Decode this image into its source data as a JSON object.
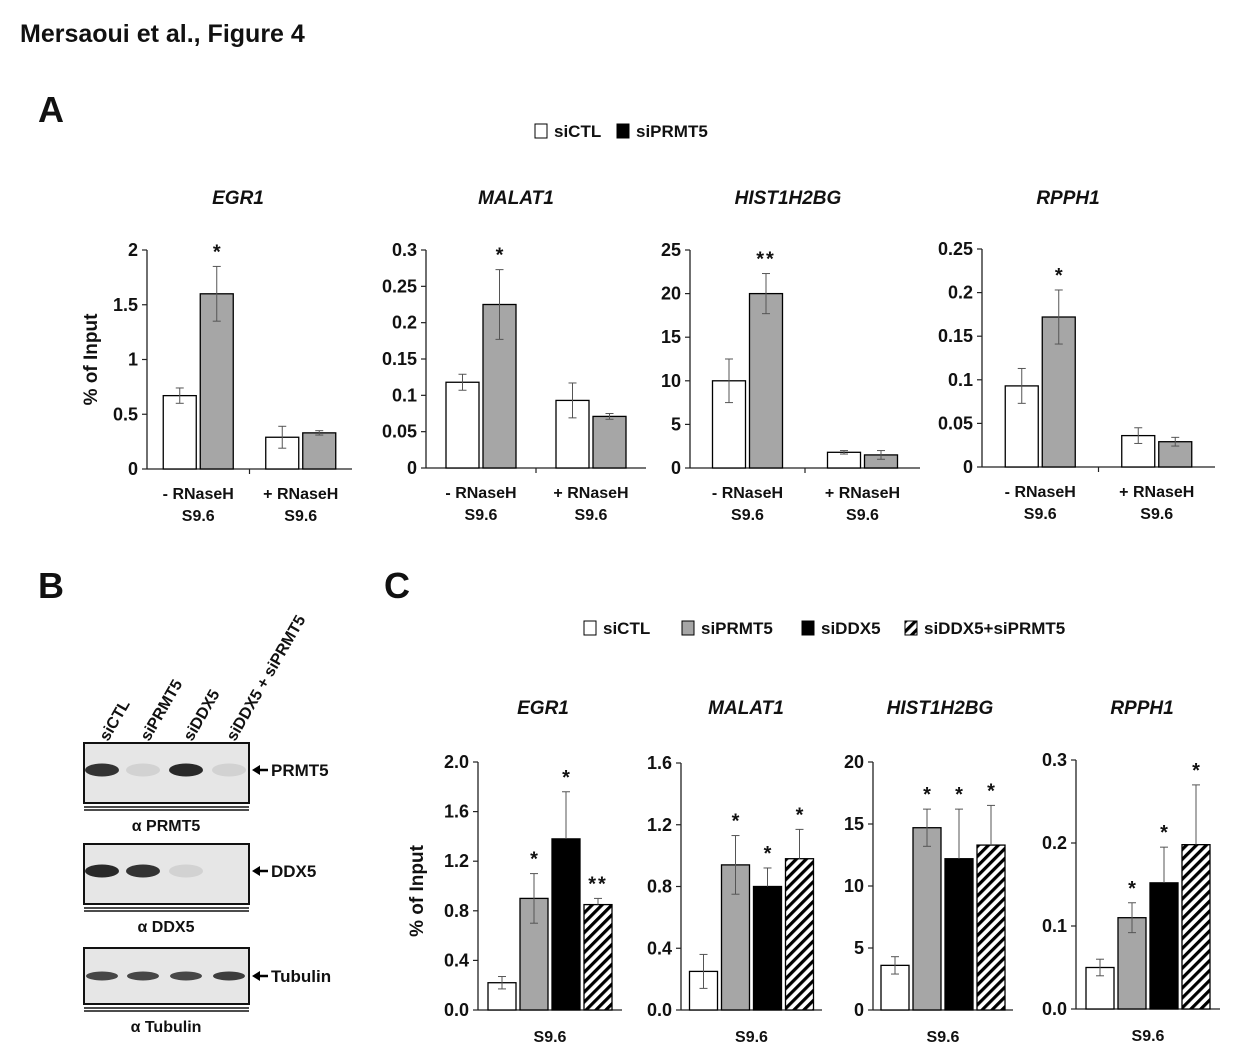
{
  "figure_title": "Mersaoui et al., Figure 4",
  "panels": {
    "A": {
      "label": "A"
    },
    "B": {
      "label": "B",
      "lanes": [
        "siCTL",
        "siPRMT5",
        "siDDX5",
        "siDDX5 + siPRMT5"
      ],
      "blots": [
        {
          "target": "PRMT5",
          "antibody": "α PRMT5",
          "band_intensity": [
            0.9,
            0.1,
            0.95,
            0.1
          ]
        },
        {
          "target": "DDX5",
          "antibody": "α DDX5",
          "band_intensity": [
            0.95,
            0.9,
            0.1,
            0.0
          ]
        },
        {
          "target": "Tubulin",
          "antibody": "α Tubulin",
          "band_intensity": [
            0.8,
            0.8,
            0.8,
            0.85
          ]
        }
      ]
    },
    "C": {
      "label": "C"
    }
  },
  "chart_data": [
    {
      "panel": "A",
      "type": "bar",
      "title": "EGR1",
      "ylabel": "% of Input",
      "xlabel": "",
      "categories": [
        "- RNaseH\nS9.6",
        "+ RNaseH\nS9.6"
      ],
      "ylim": [
        0,
        2
      ],
      "yticks": [
        "0",
        "0.5",
        "1",
        "1.5",
        "2"
      ],
      "ytick_values": [
        0,
        0.5,
        1,
        1.5,
        2
      ],
      "series": [
        {
          "name": "siCTL",
          "values": [
            0.67,
            0.29
          ],
          "errors": [
            0.07,
            0.1
          ]
        },
        {
          "name": "siPRMT5",
          "values": [
            1.6,
            0.33
          ],
          "errors": [
            0.25,
            0.02
          ]
        }
      ],
      "annotations": [
        {
          "series": 1,
          "category": 0,
          "text": "*"
        }
      ],
      "legend": "top-center",
      "grid": false
    },
    {
      "panel": "A",
      "type": "bar",
      "title": "MALAT1",
      "ylabel": "",
      "xlabel": "",
      "categories": [
        "- RNaseH\nS9.6",
        "+ RNaseH\nS9.6"
      ],
      "ylim": [
        0,
        0.3
      ],
      "yticks": [
        "0",
        "0.05",
        "0.1",
        "0.15",
        "0.2",
        "0.25",
        "0.3"
      ],
      "ytick_values": [
        0,
        0.05,
        0.1,
        0.15,
        0.2,
        0.25,
        0.3
      ],
      "series": [
        {
          "name": "siCTL",
          "values": [
            0.118,
            0.093
          ],
          "errors": [
            0.011,
            0.024
          ]
        },
        {
          "name": "siPRMT5",
          "values": [
            0.225,
            0.071
          ],
          "errors": [
            0.048,
            0.004
          ]
        }
      ],
      "annotations": [
        {
          "series": 1,
          "category": 0,
          "text": "*"
        }
      ],
      "legend": "top-center",
      "grid": false
    },
    {
      "panel": "A",
      "type": "bar",
      "title": "HIST1H2BG",
      "ylabel": "",
      "xlabel": "",
      "categories": [
        "- RNaseH\nS9.6",
        "+ RNaseH\nS9.6"
      ],
      "ylim": [
        0,
        25
      ],
      "yticks": [
        "0",
        "5",
        "10",
        "15",
        "20",
        "25"
      ],
      "ytick_values": [
        0,
        5,
        10,
        15,
        20,
        25
      ],
      "series": [
        {
          "name": "siCTL",
          "values": [
            10.0,
            1.8
          ],
          "errors": [
            2.5,
            0.2
          ]
        },
        {
          "name": "siPRMT5",
          "values": [
            20.0,
            1.5
          ],
          "errors": [
            2.3,
            0.5
          ]
        }
      ],
      "annotations": [
        {
          "series": 1,
          "category": 0,
          "text": "**"
        }
      ],
      "legend": "top-center",
      "grid": false
    },
    {
      "panel": "A",
      "type": "bar",
      "title": "RPPH1",
      "ylabel": "",
      "xlabel": "",
      "categories": [
        "- RNaseH\nS9.6",
        "+ RNaseH\nS9.6"
      ],
      "ylim": [
        0,
        0.25
      ],
      "yticks": [
        "0",
        "0.05",
        "0.1",
        "0.15",
        "0.2",
        "0.25"
      ],
      "ytick_values": [
        0,
        0.05,
        0.1,
        0.15,
        0.2,
        0.25
      ],
      "series": [
        {
          "name": "siCTL",
          "values": [
            0.093,
            0.036
          ],
          "errors": [
            0.02,
            0.009
          ]
        },
        {
          "name": "siPRMT5",
          "values": [
            0.172,
            0.029
          ],
          "errors": [
            0.031,
            0.005
          ]
        }
      ],
      "annotations": [
        {
          "series": 1,
          "category": 0,
          "text": "*"
        }
      ],
      "legend": "top-center",
      "grid": false
    },
    {
      "panel": "C",
      "type": "bar",
      "title": "EGR1",
      "ylabel": "% of Input",
      "xlabel": "",
      "categories": [
        "S9.6"
      ],
      "ylim": [
        0,
        2.0
      ],
      "yticks": [
        "0.0",
        "0.4",
        "0.8",
        "1.2",
        "1.6",
        "2.0"
      ],
      "ytick_values": [
        0,
        0.4,
        0.8,
        1.2,
        1.6,
        2.0
      ],
      "series": [
        {
          "name": "siCTL",
          "values": [
            0.22
          ],
          "errors": [
            0.05
          ]
        },
        {
          "name": "siPRMT5",
          "values": [
            0.9
          ],
          "errors": [
            0.2
          ]
        },
        {
          "name": "siDDX5",
          "values": [
            1.38
          ],
          "errors": [
            0.38
          ]
        },
        {
          "name": "siDDX5+siPRMT5",
          "values": [
            0.85
          ],
          "errors": [
            0.05
          ]
        }
      ],
      "annotations": [
        {
          "series": 1,
          "category": 0,
          "text": "*"
        },
        {
          "series": 2,
          "category": 0,
          "text": "*"
        },
        {
          "series": 3,
          "category": 0,
          "text": "**"
        }
      ],
      "legend": "top-center",
      "grid": false
    },
    {
      "panel": "C",
      "type": "bar",
      "title": "MALAT1",
      "ylabel": "",
      "xlabel": "",
      "categories": [
        "S9.6"
      ],
      "ylim": [
        0,
        1.6
      ],
      "yticks": [
        "0.0",
        "0.4",
        "0.8",
        "1.2",
        "1.6"
      ],
      "ytick_values": [
        0,
        0.4,
        0.8,
        1.2,
        1.6
      ],
      "series": [
        {
          "name": "siCTL",
          "values": [
            0.25
          ],
          "errors": [
            0.11
          ]
        },
        {
          "name": "siPRMT5",
          "values": [
            0.94
          ],
          "errors": [
            0.19
          ]
        },
        {
          "name": "siDDX5",
          "values": [
            0.8
          ],
          "errors": [
            0.12
          ]
        },
        {
          "name": "siDDX5+siPRMT5",
          "values": [
            0.98
          ],
          "errors": [
            0.19
          ]
        }
      ],
      "annotations": [
        {
          "series": 1,
          "category": 0,
          "text": "*"
        },
        {
          "series": 2,
          "category": 0,
          "text": "*"
        },
        {
          "series": 3,
          "category": 0,
          "text": "*"
        }
      ],
      "legend": "top-center",
      "grid": false
    },
    {
      "panel": "C",
      "type": "bar",
      "title": "HIST1H2BG",
      "ylabel": "",
      "xlabel": "",
      "categories": [
        "S9.6"
      ],
      "ylim": [
        0,
        20
      ],
      "yticks": [
        "0",
        "5",
        "10",
        "15",
        "20"
      ],
      "ytick_values": [
        0,
        5,
        10,
        15,
        20
      ],
      "series": [
        {
          "name": "siCTL",
          "values": [
            3.6
          ],
          "errors": [
            0.7
          ]
        },
        {
          "name": "siPRMT5",
          "values": [
            14.7
          ],
          "errors": [
            1.5
          ]
        },
        {
          "name": "siDDX5",
          "values": [
            12.2
          ],
          "errors": [
            4.0
          ]
        },
        {
          "name": "siDDX5+siPRMT5",
          "values": [
            13.3
          ],
          "errors": [
            3.2
          ]
        }
      ],
      "annotations": [
        {
          "series": 1,
          "category": 0,
          "text": "*"
        },
        {
          "series": 2,
          "category": 0,
          "text": "*"
        },
        {
          "series": 3,
          "category": 0,
          "text": "*"
        }
      ],
      "legend": "top-center",
      "grid": false
    },
    {
      "panel": "C",
      "type": "bar",
      "title": "RPPH1",
      "ylabel": "",
      "xlabel": "",
      "categories": [
        "S9.6"
      ],
      "ylim": [
        0,
        0.3
      ],
      "yticks": [
        "0.0",
        "0.1",
        "0.2",
        "0.3"
      ],
      "ytick_values": [
        0,
        0.1,
        0.2,
        0.3
      ],
      "series": [
        {
          "name": "siCTL",
          "values": [
            0.05
          ],
          "errors": [
            0.01
          ]
        },
        {
          "name": "siPRMT5",
          "values": [
            0.11
          ],
          "errors": [
            0.018
          ]
        },
        {
          "name": "siDDX5",
          "values": [
            0.152
          ],
          "errors": [
            0.043
          ]
        },
        {
          "name": "siDDX5+siPRMT5",
          "values": [
            0.198
          ],
          "errors": [
            0.072
          ]
        }
      ],
      "annotations": [
        {
          "series": 1,
          "category": 0,
          "text": "*"
        },
        {
          "series": 2,
          "category": 0,
          "text": "*"
        },
        {
          "series": 3,
          "category": 0,
          "text": "*"
        }
      ],
      "legend": "top-center",
      "grid": false
    }
  ],
  "legends": {
    "A": [
      {
        "name": "siCTL",
        "style": "white"
      },
      {
        "name": "siPRMT5",
        "style": "black"
      }
    ],
    "C": [
      {
        "name": "siCTL",
        "style": "white"
      },
      {
        "name": "siPRMT5",
        "style": "gray"
      },
      {
        "name": "siDDX5",
        "style": "black"
      },
      {
        "name": "siDDX5+siPRMT5",
        "style": "hatched"
      }
    ]
  },
  "colors": {
    "white": "#ffffff",
    "black": "#000000",
    "gray": "#a6a6a6",
    "outline": "#000000",
    "error": "#555555"
  }
}
